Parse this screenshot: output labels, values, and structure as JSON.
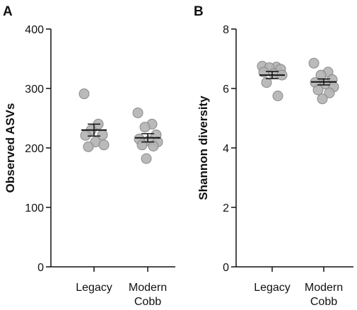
{
  "chart_data": [
    {
      "panel": "A",
      "type": "scatter",
      "ylabel": "Observed ASVs",
      "ylim": [
        0,
        400
      ],
      "yticks": [
        0,
        100,
        200,
        300,
        400
      ],
      "categories": [
        "Legacy",
        "Modern Cobb"
      ],
      "category_lines": [
        [
          "Legacy"
        ],
        [
          "Modern",
          "Cobb"
        ]
      ],
      "points": [
        [
          291,
          240,
          230,
          222,
          221,
          210,
          205,
          202
        ],
        [
          259,
          240,
          235,
          222,
          215,
          212,
          210,
          205,
          203,
          182
        ]
      ],
      "mean": [
        230,
        217
      ],
      "sem": [
        10,
        7
      ]
    },
    {
      "panel": "B",
      "type": "scatter",
      "ylabel": "Shannon diversity",
      "ylim": [
        0,
        8
      ],
      "yticks": [
        0,
        2,
        4,
        6,
        8
      ],
      "categories": [
        "Legacy",
        "Modern Cobb"
      ],
      "category_lines": [
        [
          "Legacy"
        ],
        [
          "Modern",
          "Cobb"
        ]
      ],
      "points": [
        [
          6.75,
          6.72,
          6.7,
          6.65,
          6.55,
          6.5,
          6.45,
          6.2,
          5.75
        ],
        [
          6.85,
          6.55,
          6.45,
          6.3,
          6.2,
          6.15,
          6.05,
          5.95,
          5.85,
          5.65
        ]
      ],
      "mean": [
        6.45,
        6.22
      ],
      "sem": [
        0.12,
        0.1
      ]
    }
  ],
  "colors": {
    "point_fill": "#b3b3b3",
    "point_stroke": "#8a8a8a",
    "axis": "#111111"
  }
}
